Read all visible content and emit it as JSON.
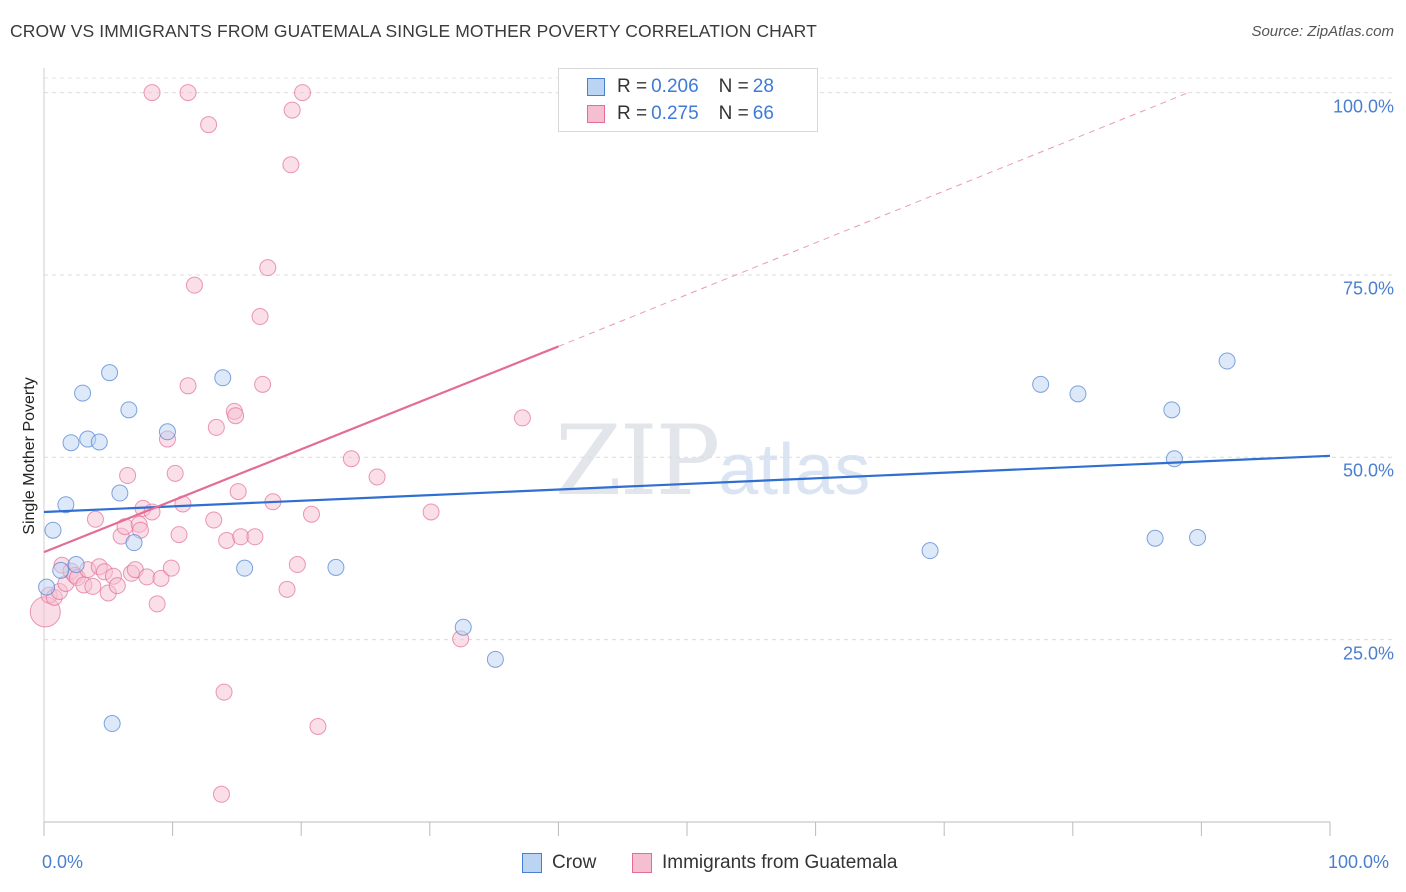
{
  "title": "CROW VS IMMIGRANTS FROM GUATEMALA SINGLE MOTHER POVERTY CORRELATION CHART",
  "source": "Source: ZipAtlas.com",
  "watermark": {
    "zip": "ZIP",
    "atlas": "atlas"
  },
  "colors": {
    "crow": "#4a7fd0",
    "crow_fill": "#bcd4f3",
    "guatemala": "#e36d96",
    "guatemala_fill": "#f6bfd1",
    "tick": "#4a7fd0"
  },
  "legend_top": {
    "rows": [
      {
        "r_label": "R = ",
        "r_value": "0.206",
        "n_label": "N = ",
        "n_value": "28"
      },
      {
        "r_label": "R = ",
        "r_value": "0.275",
        "n_label": "N = ",
        "n_value": "66"
      }
    ]
  },
  "legend_bottom": {
    "crow": "Crow",
    "guatemala": "Immigrants from Guatemala"
  },
  "chart_data": {
    "type": "scatter",
    "title": "CROW VS IMMIGRANTS FROM GUATEMALA SINGLE MOTHER POVERTY CORRELATION CHART",
    "xlabel": "",
    "ylabel": "Single Mother Poverty",
    "xlim": [
      0,
      100
    ],
    "ylim": [
      0,
      102
    ],
    "x_ticks": [
      "0.0%",
      "100.0%"
    ],
    "y_ticks": [
      {
        "value": 25,
        "label": "25.0%"
      },
      {
        "value": 50,
        "label": "50.0%"
      },
      {
        "value": 75,
        "label": "75.0%"
      },
      {
        "value": 100,
        "label": "100.0%"
      }
    ],
    "series": [
      {
        "name": "Crow",
        "R": 0.206,
        "N": 28,
        "trend": {
          "x0": 0,
          "y0": 42.5,
          "x1": 100,
          "y1": 50.2
        },
        "points": [
          [
            0.2,
            32.2
          ],
          [
            0.7,
            40.0
          ],
          [
            1.3,
            34.5
          ],
          [
            1.7,
            43.5
          ],
          [
            2.1,
            52.0
          ],
          [
            2.5,
            35.3
          ],
          [
            3.0,
            58.8
          ],
          [
            3.4,
            52.5
          ],
          [
            4.3,
            52.1
          ],
          [
            5.1,
            61.6
          ],
          [
            5.3,
            13.5
          ],
          [
            5.9,
            45.1
          ],
          [
            6.6,
            56.5
          ],
          [
            7.0,
            38.3
          ],
          [
            9.6,
            53.5
          ],
          [
            13.9,
            60.9
          ],
          [
            15.6,
            34.8
          ],
          [
            22.7,
            34.9
          ],
          [
            32.6,
            26.7
          ],
          [
            35.1,
            22.3
          ],
          [
            68.9,
            37.2
          ],
          [
            77.5,
            60.0
          ],
          [
            80.4,
            58.7
          ],
          [
            86.4,
            38.9
          ],
          [
            87.7,
            56.5
          ],
          [
            87.9,
            49.8
          ],
          [
            89.7,
            39.0
          ],
          [
            92.0,
            63.2
          ]
        ]
      },
      {
        "name": "Immigrants from Guatemala",
        "R": 0.275,
        "N": 66,
        "trend": {
          "x0": 0,
          "y0": 37.0,
          "x1": 40,
          "y1": 65.2
        },
        "trend_dashed": {
          "x0": 40,
          "y0": 65.2,
          "x1": 89,
          "y1": 100.0
        },
        "points": [
          [
            0.1,
            28.8
          ],
          [
            0.4,
            31.1
          ],
          [
            0.8,
            30.8
          ],
          [
            1.2,
            31.6
          ],
          [
            1.4,
            35.2
          ],
          [
            1.7,
            32.7
          ],
          [
            2.1,
            34.4
          ],
          [
            2.4,
            33.8
          ],
          [
            2.6,
            33.5
          ],
          [
            3.1,
            32.5
          ],
          [
            3.4,
            34.6
          ],
          [
            3.8,
            32.3
          ],
          [
            4.0,
            41.5
          ],
          [
            4.3,
            35.0
          ],
          [
            4.7,
            34.3
          ],
          [
            5.0,
            31.4
          ],
          [
            5.4,
            33.7
          ],
          [
            5.7,
            32.4
          ],
          [
            6.0,
            39.2
          ],
          [
            6.3,
            40.5
          ],
          [
            6.5,
            47.5
          ],
          [
            6.8,
            34.1
          ],
          [
            7.1,
            34.6
          ],
          [
            7.4,
            40.8
          ],
          [
            7.7,
            43.0
          ],
          [
            8.0,
            33.6
          ],
          [
            8.4,
            42.5
          ],
          [
            8.8,
            29.9
          ],
          [
            9.1,
            33.4
          ],
          [
            9.6,
            52.5
          ],
          [
            9.9,
            34.8
          ],
          [
            10.2,
            47.8
          ],
          [
            10.5,
            39.4
          ],
          [
            10.8,
            43.6
          ],
          [
            8.4,
            100.0
          ],
          [
            11.2,
            59.8
          ],
          [
            11.7,
            73.6
          ],
          [
            11.2,
            100.0
          ],
          [
            12.8,
            95.6
          ],
          [
            13.2,
            41.4
          ],
          [
            13.4,
            54.1
          ],
          [
            13.8,
            3.8
          ],
          [
            14.0,
            17.8
          ],
          [
            14.2,
            38.6
          ],
          [
            14.8,
            56.3
          ],
          [
            14.9,
            55.7
          ],
          [
            15.1,
            45.3
          ],
          [
            15.3,
            39.1
          ],
          [
            16.4,
            39.1
          ],
          [
            16.8,
            69.3
          ],
          [
            17.0,
            60.0
          ],
          [
            17.4,
            76.0
          ],
          [
            17.8,
            43.9
          ],
          [
            18.9,
            31.9
          ],
          [
            19.2,
            90.1
          ],
          [
            19.3,
            97.6
          ],
          [
            19.7,
            35.3
          ],
          [
            20.1,
            100.0
          ],
          [
            20.8,
            42.2
          ],
          [
            21.3,
            13.1
          ],
          [
            23.9,
            49.8
          ],
          [
            25.9,
            47.3
          ],
          [
            30.1,
            42.5
          ],
          [
            32.4,
            25.1
          ],
          [
            37.2,
            55.4
          ],
          [
            7.5,
            40.0
          ]
        ]
      }
    ]
  }
}
